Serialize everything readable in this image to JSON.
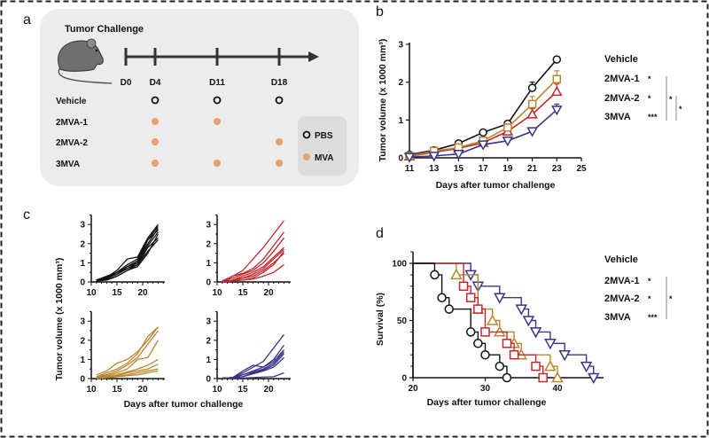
{
  "colors": {
    "vehicle": "#111111",
    "mva1": "#c0282e",
    "mva2": "#b8862e",
    "mva3": "#3a3488",
    "mva_dot": "#e8a070",
    "panel_bg": "#ececec"
  },
  "panel_labels": {
    "a": "a",
    "b": "b",
    "c": "c",
    "d": "d"
  },
  "schedule": {
    "title": "Tumor Challenge",
    "timepoints": [
      "D0",
      "D4",
      "D11",
      "D18"
    ],
    "groups": [
      {
        "name": "Vehicle",
        "doses": [
          "PBS",
          "PBS",
          "PBS"
        ]
      },
      {
        "name": "2MVA-1",
        "doses": [
          "MVA",
          "MVA",
          ""
        ]
      },
      {
        "name": "2MVA-2",
        "doses": [
          "MVA",
          "",
          "MVA"
        ]
      },
      {
        "name": "3MVA",
        "doses": [
          "MVA",
          "MVA",
          "MVA"
        ]
      }
    ],
    "legend": {
      "pbs": "PBS",
      "mva": "MVA"
    }
  },
  "significance": {
    "b": {
      "stars": [
        "*",
        "*",
        "***"
      ],
      "bracket1": "*",
      "bracket2": "*"
    },
    "d": {
      "stars": [
        "*",
        "*",
        "***"
      ],
      "bracket1": "*"
    }
  },
  "chart_data": [
    {
      "panel": "b",
      "type": "line",
      "xlabel": "Days after tumor challenge",
      "ylabel": "Tumor volume  (x 1000 mm³)",
      "xlim": [
        11,
        25
      ],
      "ylim": [
        0,
        3
      ],
      "xticks": [
        11,
        13,
        15,
        17,
        19,
        21,
        23,
        25
      ],
      "yticks": [
        0,
        1,
        2,
        3
      ],
      "x": [
        11,
        13,
        15,
        17,
        19,
        21,
        23
      ],
      "legend": [
        "Vehicle",
        "2MVA-1",
        "2MVA-2",
        "3MVA"
      ],
      "series": [
        {
          "name": "Vehicle",
          "marker": "circle",
          "values": [
            0.08,
            0.2,
            0.38,
            0.67,
            0.9,
            1.85,
            2.6
          ],
          "err": [
            0.02,
            0.03,
            0.04,
            0.05,
            0.06,
            0.15,
            0.08
          ]
        },
        {
          "name": "2MVA-1",
          "marker": "triangle",
          "values": [
            0.04,
            0.15,
            0.25,
            0.4,
            0.7,
            1.15,
            1.75
          ],
          "err": [
            0.02,
            0.03,
            0.04,
            0.05,
            0.08,
            0.15,
            0.2
          ]
        },
        {
          "name": "2MVA-2",
          "marker": "square",
          "values": [
            0.05,
            0.18,
            0.27,
            0.45,
            0.8,
            1.42,
            2.08
          ],
          "err": [
            0.02,
            0.03,
            0.04,
            0.05,
            0.08,
            0.2,
            0.22
          ]
        },
        {
          "name": "3MVA",
          "marker": "triangle-down",
          "values": [
            0.02,
            0.05,
            0.1,
            0.35,
            0.45,
            0.7,
            1.27
          ],
          "err": [
            0.01,
            0.02,
            0.03,
            0.05,
            0.05,
            0.06,
            0.15
          ]
        }
      ]
    },
    {
      "panel": "c",
      "type": "line",
      "xlabel": "Days after tumor challenge",
      "ylabel": "Tumor volume  (x 1000 mm³)",
      "xlim": [
        10,
        23
      ],
      "ylim": [
        0,
        3.5
      ],
      "xticks": [
        10,
        15,
        20
      ],
      "yticks": [
        0,
        1,
        2,
        3
      ],
      "x": [
        11,
        13,
        15,
        17,
        19,
        21,
        23
      ],
      "groups": [
        {
          "name": "Vehicle",
          "curves": [
            [
              0.1,
              0.2,
              0.5,
              0.9,
              1.2,
              2.2,
              2.7
            ],
            [
              0.1,
              0.25,
              0.6,
              1.2,
              1.3,
              2.3,
              3.0
            ],
            [
              0.05,
              0.2,
              0.4,
              0.8,
              1.0,
              1.9,
              2.6
            ],
            [
              0.1,
              0.2,
              0.5,
              0.7,
              0.9,
              1.8,
              2.3
            ],
            [
              0.05,
              0.15,
              0.3,
              0.6,
              0.9,
              1.6,
              2.2
            ],
            [
              0.1,
              0.3,
              0.5,
              0.8,
              1.1,
              2.0,
              2.8
            ],
            [
              0.05,
              0.1,
              0.3,
              0.6,
              0.8,
              1.5,
              2.5
            ],
            [
              0.1,
              0.2,
              0.4,
              0.7,
              1.0,
              2.2,
              2.9
            ]
          ]
        },
        {
          "name": "2MVA-1",
          "curves": [
            [
              0.05,
              0.3,
              0.6,
              1.2,
              1.8,
              2.5,
              3.2
            ],
            [
              0.05,
              0.3,
              0.45,
              0.7,
              1.2,
              1.9,
              2.6
            ],
            [
              0.05,
              0.2,
              0.4,
              0.6,
              1.0,
              1.6,
              2.3
            ],
            [
              0.02,
              0.1,
              0.3,
              0.5,
              0.8,
              1.3,
              1.8
            ],
            [
              0.02,
              0.1,
              0.2,
              0.4,
              0.7,
              1.2,
              1.7
            ],
            [
              0.02,
              0.05,
              0.2,
              0.3,
              0.6,
              1.0,
              1.5
            ],
            [
              0.02,
              0.05,
              0.1,
              0.2,
              0.5,
              0.9,
              1.6
            ],
            [
              0.02,
              0.05,
              0.1,
              0.15,
              0.3,
              0.5,
              0.9
            ]
          ]
        },
        {
          "name": "2MVA-2",
          "curves": [
            [
              0.2,
              0.4,
              0.8,
              1.0,
              1.4,
              2.0,
              2.7
            ],
            [
              0.1,
              0.3,
              0.5,
              0.8,
              1.3,
              2.2,
              2.7
            ],
            [
              0.1,
              0.2,
              0.4,
              0.7,
              1.1,
              1.8,
              2.5
            ],
            [
              0.05,
              0.15,
              0.3,
              0.5,
              1.0,
              1.1,
              2.0
            ],
            [
              0.05,
              0.1,
              0.2,
              0.35,
              0.5,
              0.7,
              1.0
            ],
            [
              0.02,
              0.1,
              0.15,
              0.3,
              0.4,
              0.5,
              0.75
            ],
            [
              0.02,
              0.05,
              0.1,
              0.2,
              0.3,
              0.4,
              0.5
            ],
            [
              0.02,
              0.05,
              0.1,
              0.15,
              0.2,
              0.3,
              0.4
            ]
          ]
        },
        {
          "name": "3MVA",
          "curves": [
            [
              0.02,
              0.05,
              0.3,
              0.6,
              0.9,
              1.6,
              2.3
            ],
            [
              0.02,
              0.05,
              0.4,
              0.7,
              0.6,
              1.0,
              1.75
            ],
            [
              0.02,
              0.05,
              0.2,
              0.4,
              0.6,
              0.9,
              1.5
            ],
            [
              0.02,
              0.05,
              0.2,
              0.35,
              0.5,
              0.8,
              1.4
            ],
            [
              0.02,
              0.05,
              0.1,
              0.3,
              0.45,
              0.7,
              1.3
            ],
            [
              0.02,
              0.03,
              0.1,
              0.25,
              0.4,
              0.6,
              1.1
            ],
            [
              0.01,
              0.02,
              0.03,
              0.05,
              0.08,
              0.1,
              0.3
            ]
          ]
        }
      ]
    },
    {
      "panel": "d",
      "type": "line",
      "subtype": "kaplan-meier",
      "xlabel": "Days after tumor challenge",
      "ylabel": "Survival (%)",
      "xlim": [
        20,
        46
      ],
      "ylim": [
        0,
        100
      ],
      "xticks": [
        20,
        30,
        40
      ],
      "yticks": [
        0,
        50,
        100
      ],
      "legend": [
        "Vehicle",
        "2MVA-1",
        "2MVA-2",
        "3MVA"
      ],
      "series": [
        {
          "name": "Vehicle",
          "marker": "circle",
          "steps": [
            [
              23,
              90
            ],
            [
              24,
              70
            ],
            [
              25,
              60
            ],
            [
              28,
              40
            ],
            [
              29,
              30
            ],
            [
              30,
              20
            ],
            [
              32,
              10
            ],
            [
              33,
              0
            ]
          ]
        },
        {
          "name": "2MVA-1",
          "marker": "square",
          "steps": [
            [
              27,
              80
            ],
            [
              28,
              70
            ],
            [
              29,
              60
            ],
            [
              30,
              40
            ],
            [
              33,
              30
            ],
            [
              34,
              20
            ],
            [
              37,
              10
            ],
            [
              38,
              0
            ]
          ]
        },
        {
          "name": "2MVA-2",
          "marker": "triangle",
          "steps": [
            [
              26,
              90
            ],
            [
              29,
              60
            ],
            [
              31,
              50
            ],
            [
              32,
              40
            ],
            [
              34,
              30
            ],
            [
              35,
              20
            ],
            [
              39,
              10
            ],
            [
              40,
              0
            ]
          ]
        },
        {
          "name": "3MVA",
          "marker": "triangle-down",
          "steps": [
            [
              28,
              90
            ],
            [
              29,
              80
            ],
            [
              32,
              70
            ],
            [
              35,
              60
            ],
            [
              36,
              50
            ],
            [
              37,
              40
            ],
            [
              39,
              30
            ],
            [
              41,
              20
            ],
            [
              44,
              10
            ],
            [
              45,
              0
            ]
          ]
        }
      ]
    }
  ]
}
